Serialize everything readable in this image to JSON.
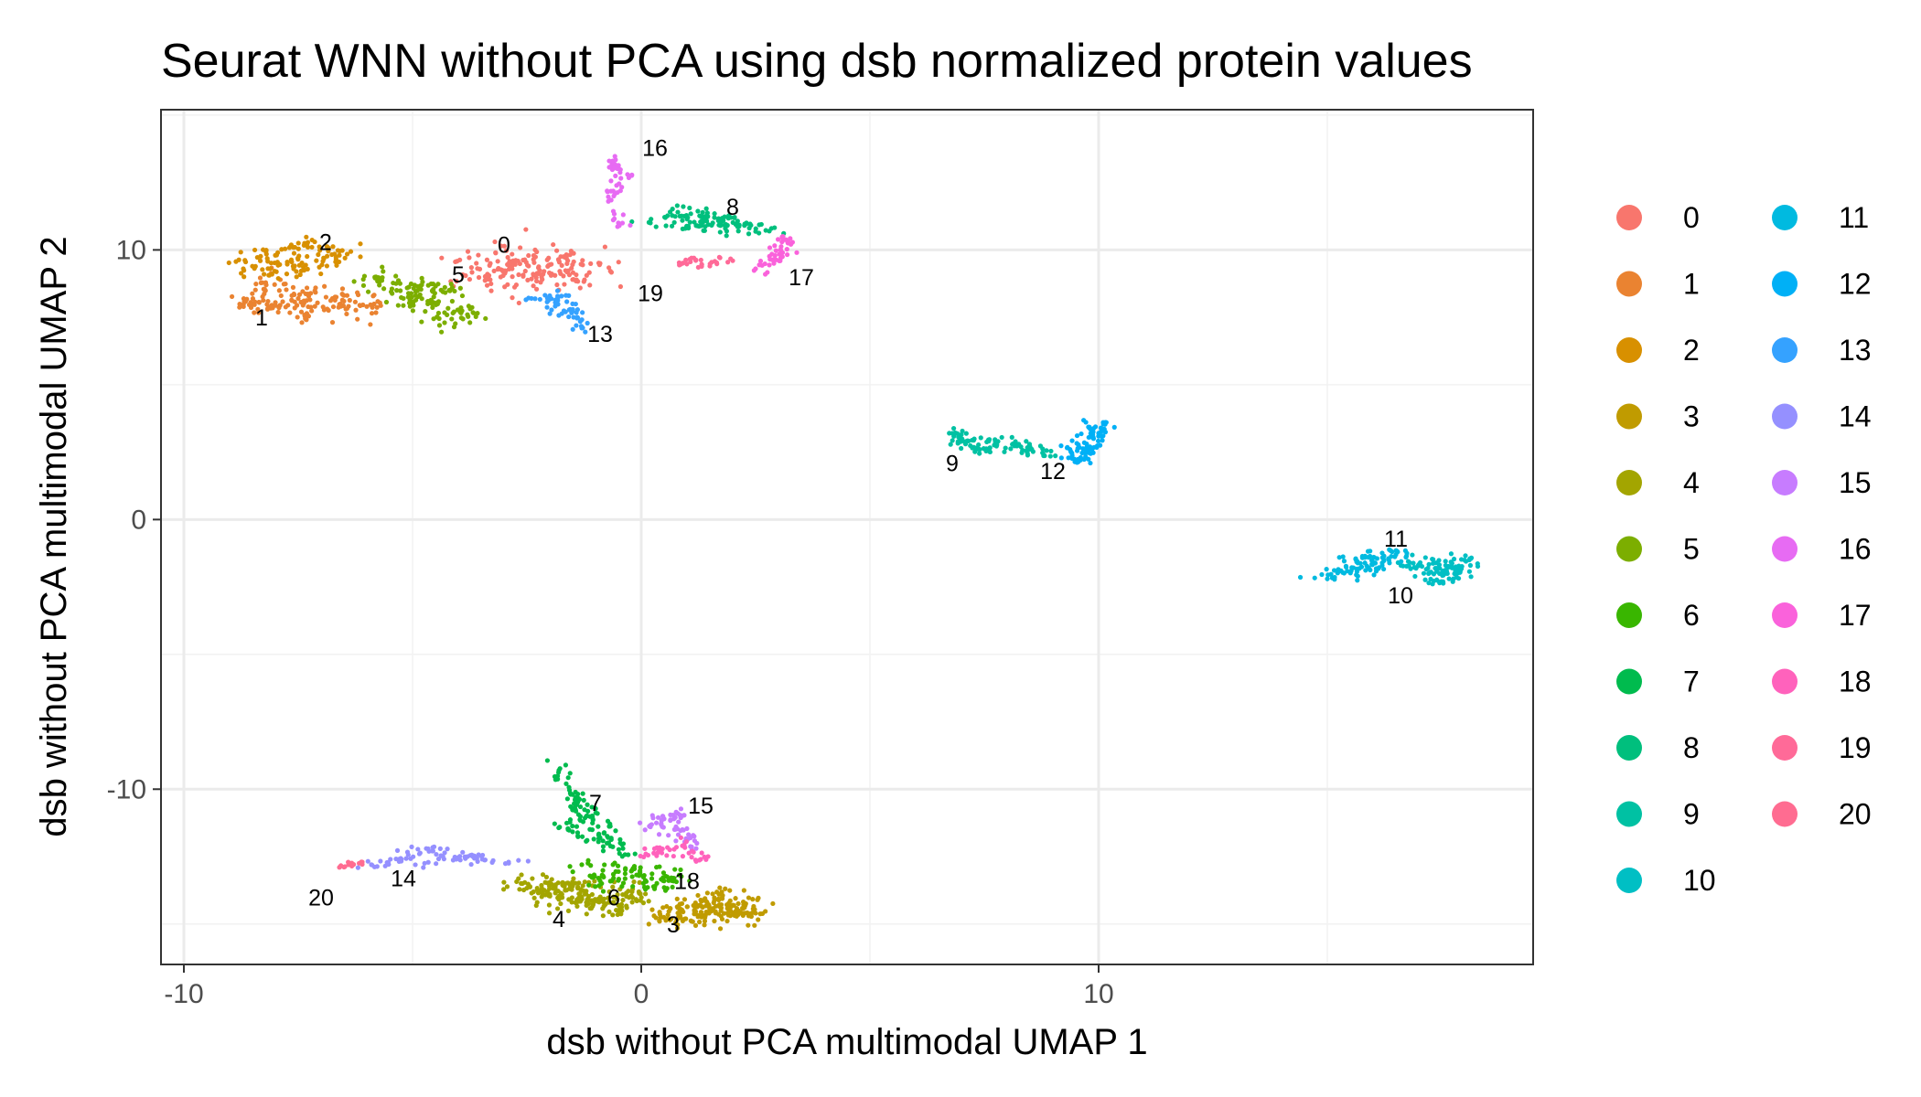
{
  "chart_data": {
    "type": "scatter",
    "title": "Seurat WNN without PCA using dsb normalized protein values",
    "xlabel": "dsb without PCA multimodal UMAP 1",
    "ylabel": "dsb without PCA multimodal UMAP 2",
    "xlim": [
      -10.5,
      19.5
    ],
    "ylim": [
      -16.5,
      15.2
    ],
    "xticks": [
      -10,
      0,
      10
    ],
    "yticks": [
      -10,
      0,
      10
    ],
    "xtick_labels": [
      "-10",
      "0",
      "10"
    ],
    "ytick_labels": [
      "-10",
      "0",
      "10"
    ],
    "grid": true,
    "legend_position": "right",
    "legend_columns": 2,
    "clusters": [
      {
        "name": "0",
        "color": "#F8766D",
        "label": {
          "x": -3.0,
          "y": 10.2
        },
        "points": [
          [
            -2.8,
            9.6
          ],
          [
            -1.8,
            9.6
          ],
          [
            -3.3,
            9.5
          ],
          [
            -2.2,
            8.8
          ],
          [
            -1.5,
            8.9
          ],
          [
            -0.9,
            9.5
          ],
          [
            -3.2,
            10.3
          ],
          [
            -3.4,
            8.9
          ]
        ],
        "spread": [
          0.9,
          0.55
        ],
        "count": 170
      },
      {
        "name": "1",
        "color": "#EA8331",
        "label": {
          "x": -8.3,
          "y": 7.5
        },
        "points": [
          [
            -8.2,
            8.7
          ],
          [
            -7.5,
            8.2
          ],
          [
            -7.3,
            7.6
          ],
          [
            -8.5,
            8.0
          ],
          [
            -6.5,
            8.1
          ],
          [
            -6.0,
            7.9
          ]
        ],
        "spread": [
          0.55,
          0.45
        ],
        "count": 150
      },
      {
        "name": "2",
        "color": "#D89000",
        "label": {
          "x": -6.9,
          "y": 10.3
        },
        "points": [
          [
            -8.0,
            9.8
          ],
          [
            -7.2,
            10.1
          ],
          [
            -6.6,
            9.8
          ],
          [
            -8.7,
            9.3
          ],
          [
            -7.6,
            9.3
          ]
        ],
        "spread": [
          0.5,
          0.35
        ],
        "count": 110
      },
      {
        "name": "3",
        "color": "#C09B00",
        "label": {
          "x": 0.7,
          "y": -15.0
        },
        "points": [
          [
            0.8,
            -14.4
          ],
          [
            1.4,
            -14.7
          ],
          [
            2.0,
            -14.3
          ],
          [
            0.4,
            -14.9
          ],
          [
            1.7,
            -13.9
          ],
          [
            2.5,
            -14.6
          ]
        ],
        "spread": [
          0.45,
          0.35
        ],
        "count": 180
      },
      {
        "name": "4",
        "color": "#A3A500",
        "label": {
          "x": -1.8,
          "y": -14.8
        },
        "points": [
          [
            -2.0,
            -13.9
          ],
          [
            -1.2,
            -14.2
          ],
          [
            -0.5,
            -14.5
          ],
          [
            -2.6,
            -13.5
          ],
          [
            -1.5,
            -13.6
          ],
          [
            -0.2,
            -13.8
          ]
        ],
        "spread": [
          0.5,
          0.35
        ],
        "count": 190
      },
      {
        "name": "5",
        "color": "#7CAE00",
        "label": {
          "x": -4.0,
          "y": 9.1
        },
        "points": [
          [
            -5.8,
            9.0
          ],
          [
            -4.8,
            8.7
          ],
          [
            -4.2,
            8.5
          ],
          [
            -3.8,
            7.6
          ],
          [
            -4.3,
            7.3
          ],
          [
            -5.2,
            8.2
          ]
        ],
        "spread": [
          0.45,
          0.35
        ],
        "count": 130
      },
      {
        "name": "6",
        "color": "#39B600",
        "label": {
          "x": -0.6,
          "y": -14.0
        },
        "points": [
          [
            -0.9,
            -13.4
          ],
          [
            -0.2,
            -13.0
          ],
          [
            0.3,
            -13.6
          ],
          [
            -1.3,
            -12.8
          ],
          [
            0.7,
            -13.3
          ]
        ],
        "spread": [
          0.35,
          0.3
        ],
        "count": 90
      },
      {
        "name": "7",
        "color": "#00BB4E",
        "label": {
          "x": -1.0,
          "y": -10.5
        },
        "points": [
          [
            -1.8,
            -9.3
          ],
          [
            -1.5,
            -10.2
          ],
          [
            -1.2,
            -11.0
          ],
          [
            -0.9,
            -11.8
          ],
          [
            -0.4,
            -12.2
          ],
          [
            -1.6,
            -11.5
          ]
        ],
        "spread": [
          0.25,
          0.3
        ],
        "count": 110
      },
      {
        "name": "8",
        "color": "#00BF7D",
        "label": {
          "x": 2.0,
          "y": 11.6
        },
        "points": [
          [
            0.8,
            11.4
          ],
          [
            1.6,
            11.2
          ],
          [
            2.3,
            11.0
          ],
          [
            2.8,
            10.7
          ],
          [
            1.2,
            10.9
          ],
          [
            0.2,
            11.0
          ]
        ],
        "spread": [
          0.35,
          0.22
        ],
        "count": 110
      },
      {
        "name": "9",
        "color": "#00C1A3",
        "label": {
          "x": 6.8,
          "y": 2.1
        },
        "points": [
          [
            7.0,
            2.9
          ],
          [
            7.8,
            2.9
          ],
          [
            8.5,
            2.7
          ],
          [
            6.8,
            3.2
          ],
          [
            7.4,
            2.6
          ],
          [
            8.8,
            2.4
          ]
        ],
        "spread": [
          0.3,
          0.18
        ],
        "count": 90
      },
      {
        "name": "10",
        "color": "#00BFC4",
        "label": {
          "x": 16.6,
          "y": -2.8
        },
        "points": [
          [
            17.2,
            -1.8
          ],
          [
            17.8,
            -1.9
          ],
          [
            17.5,
            -2.3
          ],
          [
            16.8,
            -1.6
          ],
          [
            18.0,
            -1.5
          ]
        ],
        "spread": [
          0.3,
          0.25
        ],
        "count": 100
      },
      {
        "name": "11",
        "color": "#00BAE0",
        "label": {
          "x": 16.5,
          "y": -0.7
        },
        "points": [
          [
            15.3,
            -1.9
          ],
          [
            15.9,
            -1.4
          ],
          [
            16.5,
            -1.3
          ],
          [
            15.0,
            -2.2
          ],
          [
            16.2,
            -1.7
          ]
        ],
        "spread": [
          0.35,
          0.2
        ],
        "count": 90
      },
      {
        "name": "12",
        "color": "#00B0F6",
        "label": {
          "x": 9.0,
          "y": 1.8
        },
        "points": [
          [
            9.8,
            2.6
          ],
          [
            9.4,
            2.5
          ],
          [
            10.0,
            3.2
          ],
          [
            9.6,
            2.2
          ],
          [
            10.1,
            3.6
          ]
        ],
        "spread": [
          0.25,
          0.28
        ],
        "count": 80
      },
      {
        "name": "13",
        "color": "#35A2FF",
        "label": {
          "x": -0.9,
          "y": 6.9
        },
        "points": [
          [
            -2.0,
            8.3
          ],
          [
            -1.5,
            8.0
          ],
          [
            -1.4,
            7.5
          ],
          [
            -1.3,
            7.1
          ],
          [
            -2.4,
            8.2
          ]
        ],
        "spread": [
          0.25,
          0.25
        ],
        "count": 50
      },
      {
        "name": "14",
        "color": "#9590FF",
        "label": {
          "x": -5.2,
          "y": -13.3
        },
        "points": [
          [
            -4.7,
            -12.2
          ],
          [
            -3.8,
            -12.5
          ],
          [
            -2.9,
            -12.7
          ],
          [
            -5.3,
            -12.6
          ],
          [
            -5.9,
            -12.8
          ]
        ],
        "spread": [
          0.35,
          0.12
        ],
        "count": 75
      },
      {
        "name": "15",
        "color": "#C77CFF",
        "label": {
          "x": 1.3,
          "y": -10.6
        },
        "points": [
          [
            0.5,
            -11.1
          ],
          [
            0.9,
            -11.5
          ],
          [
            1.2,
            -12.2
          ],
          [
            0.2,
            -11.4
          ],
          [
            0.8,
            -10.9
          ]
        ],
        "spread": [
          0.28,
          0.25
        ],
        "count": 55
      },
      {
        "name": "16",
        "color": "#E76BF3",
        "label": {
          "x": 0.3,
          "y": 13.8
        },
        "points": [
          [
            -0.5,
            13.1
          ],
          [
            -0.7,
            13.3
          ],
          [
            -0.3,
            12.8
          ],
          [
            -0.6,
            12.0
          ],
          [
            -0.5,
            11.0
          ]
        ],
        "spread": [
          0.2,
          0.22
        ],
        "count": 45
      },
      {
        "name": "17",
        "color": "#FA62DB",
        "label": {
          "x": 3.5,
          "y": 9.0
        },
        "points": [
          [
            3.2,
            10.3
          ],
          [
            3.4,
            9.9
          ],
          [
            2.9,
            9.5
          ],
          [
            2.5,
            9.3
          ],
          [
            3.1,
            10.5
          ]
        ],
        "spread": [
          0.2,
          0.2
        ],
        "count": 40
      },
      {
        "name": "18",
        "color": "#FF62BC",
        "label": {
          "x": 1.0,
          "y": -13.4
        },
        "points": [
          [
            0.4,
            -12.3
          ],
          [
            0.9,
            -12.1
          ],
          [
            1.3,
            -12.6
          ],
          [
            0.1,
            -12.4
          ]
        ],
        "spread": [
          0.2,
          0.18
        ],
        "count": 35
      },
      {
        "name": "19",
        "color": "#FF6A98",
        "label": {
          "x": 0.2,
          "y": 8.4
        },
        "points": [
          [
            0.9,
            9.5
          ],
          [
            1.5,
            9.4
          ],
          [
            2.0,
            9.6
          ],
          [
            1.1,
            9.7
          ]
        ],
        "spread": [
          0.25,
          0.12
        ],
        "count": 25
      },
      {
        "name": "20",
        "color": "#FF6C91",
        "label": {
          "x": -7.0,
          "y": -14.0
        },
        "points": [
          [
            -6.4,
            -12.8
          ],
          [
            -6.1,
            -12.7
          ],
          [
            -6.6,
            -12.9
          ]
        ],
        "spread": [
          0.15,
          0.08
        ],
        "count": 12
      }
    ]
  }
}
